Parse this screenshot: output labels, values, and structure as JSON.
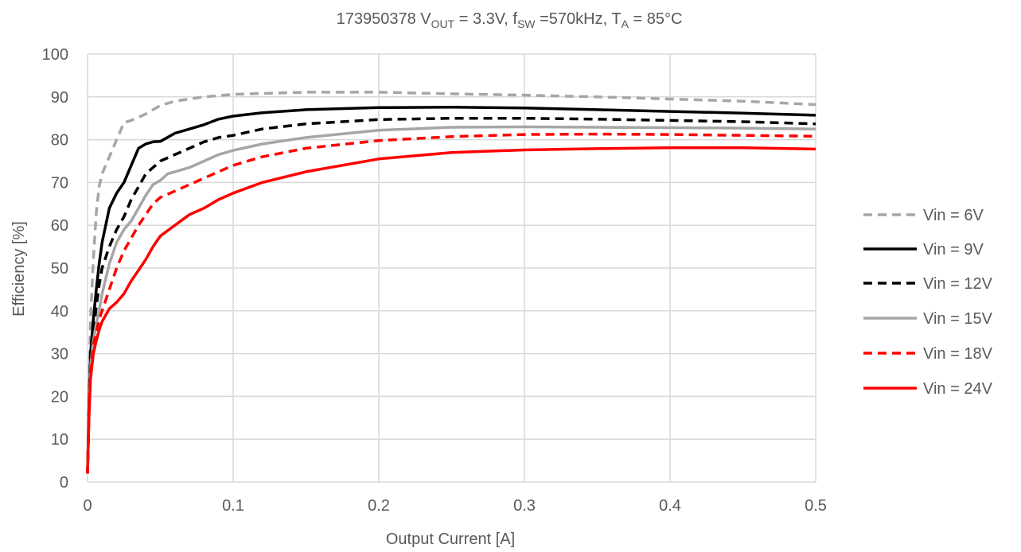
{
  "chart_data": {
    "type": "line",
    "title": {
      "part_number": "173950378",
      "vout_prefix": "V",
      "vout_sub": "OUT",
      "vout_value": " = 3.3V, ",
      "fsw_prefix": "f",
      "fsw_sub": "SW",
      "fsw_value": " =570kHz, ",
      "ta_prefix": "T",
      "ta_sub": "A",
      "ta_value": " = 85°C"
    },
    "xlabel": "Output Current [A]",
    "ylabel": "Efficiency [%]",
    "xlim": [
      0,
      0.5
    ],
    "ylim": [
      0,
      100
    ],
    "xticks": [
      0,
      0.1,
      0.2,
      0.3,
      0.4,
      0.5
    ],
    "xtick_labels": [
      "0",
      "0.1",
      "0.2",
      "0.3",
      "0.4",
      "0.5"
    ],
    "yticks": [
      0,
      10,
      20,
      30,
      40,
      50,
      60,
      70,
      80,
      90,
      100
    ],
    "ytick_labels": [
      "0",
      "10",
      "20",
      "30",
      "40",
      "50",
      "60",
      "70",
      "80",
      "90",
      "100"
    ],
    "grid": "major-both",
    "legend_position": "right",
    "series": [
      {
        "name": "Vin = 6V",
        "color": "#a6a6a6",
        "dash": true,
        "points": [
          [
            0,
            2
          ],
          [
            0.001,
            20
          ],
          [
            0.002,
            38
          ],
          [
            0.004,
            52
          ],
          [
            0.006,
            63
          ],
          [
            0.008,
            69
          ],
          [
            0.01,
            72
          ],
          [
            0.015,
            76
          ],
          [
            0.02,
            80
          ],
          [
            0.025,
            84
          ],
          [
            0.03,
            84.5
          ],
          [
            0.04,
            86
          ],
          [
            0.05,
            88
          ],
          [
            0.06,
            89
          ],
          [
            0.08,
            90
          ],
          [
            0.1,
            90.6
          ],
          [
            0.15,
            91.1
          ],
          [
            0.2,
            91.1
          ],
          [
            0.25,
            90.7
          ],
          [
            0.3,
            90.4
          ],
          [
            0.35,
            90
          ],
          [
            0.4,
            89.5
          ],
          [
            0.45,
            89
          ],
          [
            0.5,
            88.2
          ]
        ]
      },
      {
        "name": "Vin = 9V",
        "color": "#000000",
        "dash": false,
        "points": [
          [
            0,
            2
          ],
          [
            0.001,
            18
          ],
          [
            0.002,
            30
          ],
          [
            0.004,
            38
          ],
          [
            0.006,
            45
          ],
          [
            0.008,
            51
          ],
          [
            0.01,
            56
          ],
          [
            0.015,
            64
          ],
          [
            0.02,
            67.5
          ],
          [
            0.025,
            70
          ],
          [
            0.03,
            74
          ],
          [
            0.035,
            78
          ],
          [
            0.04,
            79
          ],
          [
            0.045,
            79.5
          ],
          [
            0.05,
            79.6
          ],
          [
            0.06,
            81.5
          ],
          [
            0.07,
            82.5
          ],
          [
            0.08,
            83.5
          ],
          [
            0.09,
            84.8
          ],
          [
            0.1,
            85.5
          ],
          [
            0.12,
            86.3
          ],
          [
            0.15,
            87
          ],
          [
            0.2,
            87.5
          ],
          [
            0.25,
            87.6
          ],
          [
            0.3,
            87.4
          ],
          [
            0.35,
            87
          ],
          [
            0.4,
            86.6
          ],
          [
            0.45,
            86.2
          ],
          [
            0.5,
            85.7
          ]
        ]
      },
      {
        "name": "Vin = 12V",
        "color": "#000000",
        "dash": true,
        "points": [
          [
            0,
            2
          ],
          [
            0.001,
            17
          ],
          [
            0.002,
            28
          ],
          [
            0.004,
            35
          ],
          [
            0.006,
            41
          ],
          [
            0.008,
            46
          ],
          [
            0.01,
            50
          ],
          [
            0.015,
            55
          ],
          [
            0.02,
            59
          ],
          [
            0.025,
            62
          ],
          [
            0.03,
            66
          ],
          [
            0.035,
            69
          ],
          [
            0.04,
            72
          ],
          [
            0.045,
            73.5
          ],
          [
            0.05,
            75
          ],
          [
            0.06,
            76.5
          ],
          [
            0.07,
            78
          ],
          [
            0.08,
            79.5
          ],
          [
            0.09,
            80.5
          ],
          [
            0.1,
            81
          ],
          [
            0.12,
            82.5
          ],
          [
            0.15,
            83.7
          ],
          [
            0.2,
            84.7
          ],
          [
            0.25,
            85
          ],
          [
            0.3,
            85
          ],
          [
            0.35,
            84.8
          ],
          [
            0.4,
            84.5
          ],
          [
            0.45,
            84.2
          ],
          [
            0.5,
            83.7
          ]
        ]
      },
      {
        "name": "Vin = 15V",
        "color": "#a6a6a6",
        "dash": false,
        "points": [
          [
            0,
            2
          ],
          [
            0.001,
            16
          ],
          [
            0.002,
            27
          ],
          [
            0.004,
            33
          ],
          [
            0.006,
            37
          ],
          [
            0.008,
            40
          ],
          [
            0.01,
            44
          ],
          [
            0.015,
            51
          ],
          [
            0.02,
            56
          ],
          [
            0.025,
            59
          ],
          [
            0.03,
            61
          ],
          [
            0.035,
            64
          ],
          [
            0.04,
            67
          ],
          [
            0.045,
            69.5
          ],
          [
            0.05,
            70.5
          ],
          [
            0.055,
            72
          ],
          [
            0.06,
            72.5
          ],
          [
            0.065,
            73
          ],
          [
            0.07,
            73.5
          ],
          [
            0.08,
            75
          ],
          [
            0.09,
            76.5
          ],
          [
            0.1,
            77.5
          ],
          [
            0.12,
            79
          ],
          [
            0.15,
            80.5
          ],
          [
            0.2,
            82.2
          ],
          [
            0.25,
            82.9
          ],
          [
            0.3,
            83
          ],
          [
            0.35,
            82.9
          ],
          [
            0.4,
            82.8
          ],
          [
            0.45,
            82.7
          ],
          [
            0.5,
            82.5
          ]
        ]
      },
      {
        "name": "Vin = 18V",
        "color": "#ff0000",
        "dash": true,
        "points": [
          [
            0,
            2
          ],
          [
            0.001,
            16
          ],
          [
            0.002,
            26
          ],
          [
            0.004,
            32
          ],
          [
            0.006,
            35
          ],
          [
            0.008,
            38
          ],
          [
            0.01,
            40
          ],
          [
            0.015,
            45
          ],
          [
            0.02,
            50
          ],
          [
            0.025,
            54
          ],
          [
            0.03,
            57
          ],
          [
            0.035,
            60
          ],
          [
            0.04,
            62.5
          ],
          [
            0.045,
            65
          ],
          [
            0.05,
            66.5
          ],
          [
            0.06,
            68
          ],
          [
            0.07,
            69.5
          ],
          [
            0.08,
            71
          ],
          [
            0.09,
            72.5
          ],
          [
            0.1,
            74
          ],
          [
            0.12,
            76
          ],
          [
            0.15,
            78
          ],
          [
            0.2,
            79.8
          ],
          [
            0.25,
            80.7
          ],
          [
            0.3,
            81.2
          ],
          [
            0.35,
            81.3
          ],
          [
            0.4,
            81.2
          ],
          [
            0.45,
            81
          ],
          [
            0.5,
            80.8
          ]
        ]
      },
      {
        "name": "Vin = 24V",
        "color": "#ff0000",
        "dash": false,
        "points": [
          [
            0,
            2
          ],
          [
            0.001,
            15
          ],
          [
            0.002,
            24
          ],
          [
            0.004,
            30
          ],
          [
            0.006,
            33
          ],
          [
            0.008,
            35.5
          ],
          [
            0.01,
            37.5
          ],
          [
            0.015,
            40.5
          ],
          [
            0.02,
            42
          ],
          [
            0.025,
            44
          ],
          [
            0.03,
            47
          ],
          [
            0.035,
            49.5
          ],
          [
            0.04,
            52
          ],
          [
            0.045,
            55
          ],
          [
            0.05,
            57.5
          ],
          [
            0.06,
            60
          ],
          [
            0.07,
            62.5
          ],
          [
            0.08,
            64
          ],
          [
            0.09,
            66
          ],
          [
            0.1,
            67.5
          ],
          [
            0.12,
            70
          ],
          [
            0.15,
            72.5
          ],
          [
            0.2,
            75.5
          ],
          [
            0.25,
            77
          ],
          [
            0.3,
            77.6
          ],
          [
            0.35,
            77.9
          ],
          [
            0.4,
            78.1
          ],
          [
            0.45,
            78.1
          ],
          [
            0.5,
            77.8
          ]
        ]
      }
    ]
  }
}
